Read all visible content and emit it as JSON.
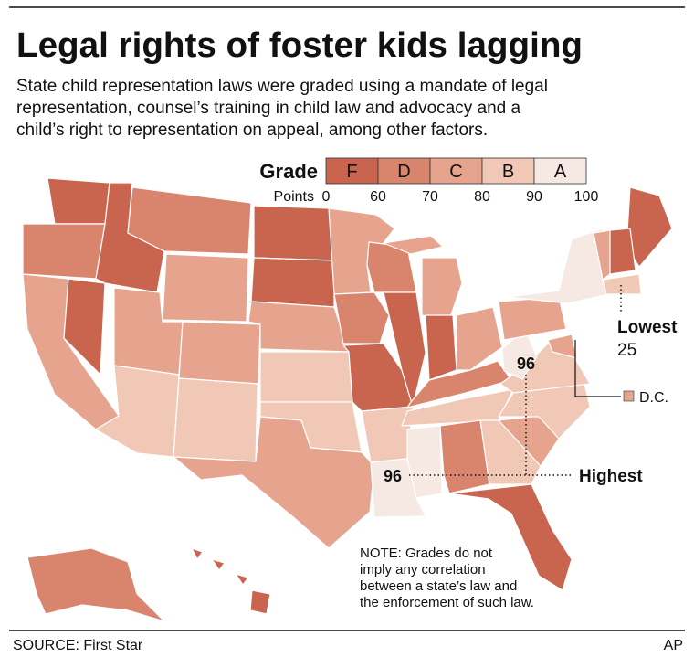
{
  "header": {
    "title": "Legal rights of foster kids lagging",
    "subtitle": [
      "State child representation laws were graded using a mandate of legal",
      "representation, counsel’s training in child law and advocacy and a",
      "child’s right to representation on appeal, among other factors."
    ]
  },
  "legend": {
    "label": "Grade",
    "grades": [
      "F",
      "D",
      "C",
      "B",
      "A"
    ],
    "points_label": "Points",
    "points": [
      0,
      60,
      70,
      80,
      90,
      100
    ]
  },
  "annotations": {
    "lowest": {
      "label": "Lowest",
      "value": 25
    },
    "highest": {
      "label": "Highest",
      "markers": [
        96,
        96
      ]
    },
    "dc": "D.C."
  },
  "note": [
    "NOTE: Grades do not",
    "imply any correlation",
    "between a state’s law and",
    "the enforcement of such law."
  ],
  "footer": {
    "source": "SOURCE: First Star",
    "credit": "AP"
  }
}
